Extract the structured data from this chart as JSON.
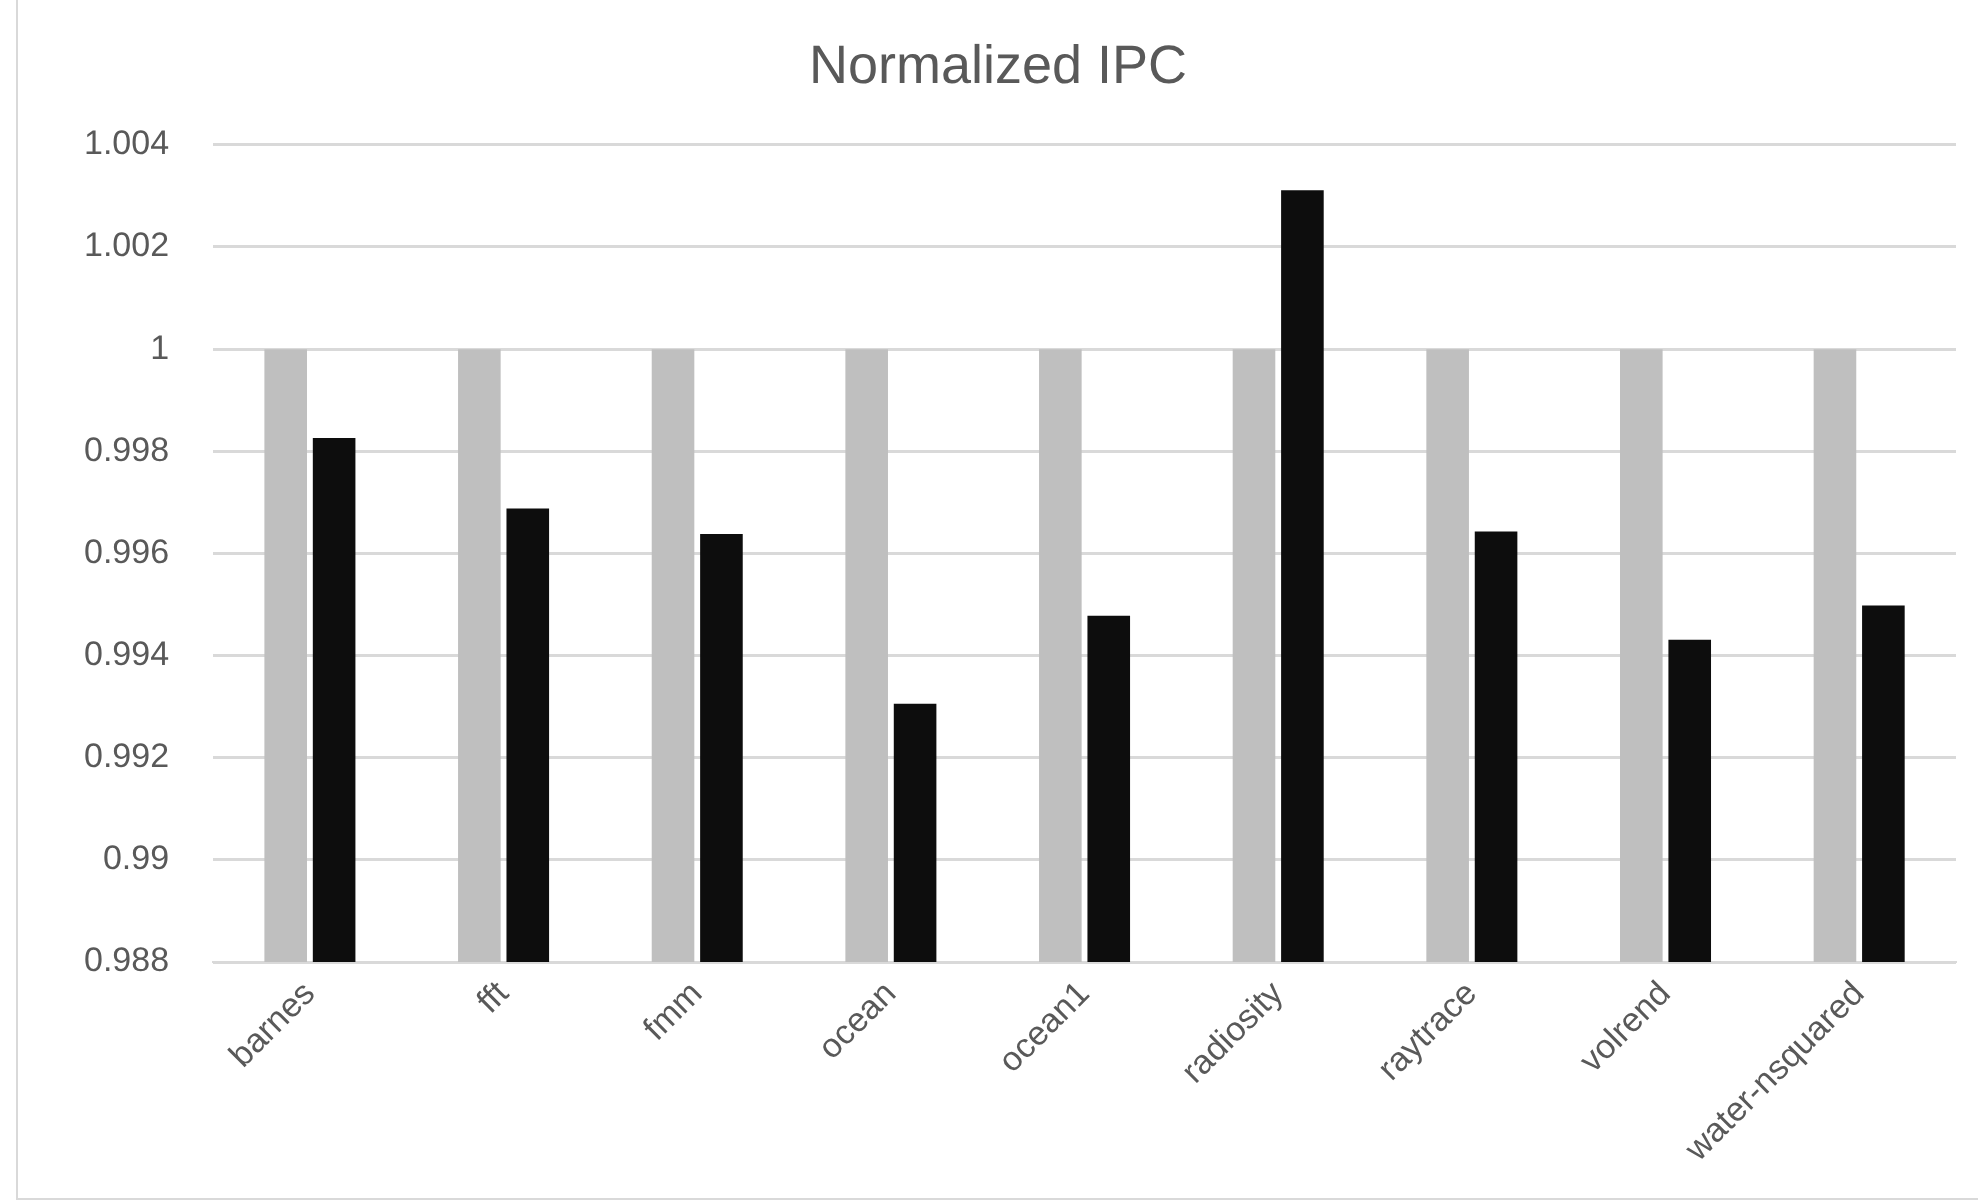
{
  "chart_data": {
    "type": "bar",
    "title": "Normalized IPC",
    "categories": [
      "barnes",
      "fft",
      "fmm",
      "ocean",
      "ocean1",
      "radiosity",
      "raytrace",
      "volrend",
      "water-nsquared"
    ],
    "series": [
      {
        "color": "#bfbfbf",
        "values": [
          1,
          1,
          1,
          1,
          1,
          1,
          1,
          1,
          1
        ]
      },
      {
        "color": "#0d0d0d",
        "values": [
          0.99826,
          0.99688,
          0.99638,
          0.99306,
          0.99478,
          1.00311,
          0.99643,
          0.99431,
          0.99498
        ]
      }
    ],
    "ylim": [
      0.988,
      1.004
    ],
    "yticks": [
      0.988,
      0.99,
      0.992,
      0.994,
      0.996,
      0.998,
      1,
      1.002,
      1.004
    ],
    "grid": "y",
    "legend": false
  }
}
